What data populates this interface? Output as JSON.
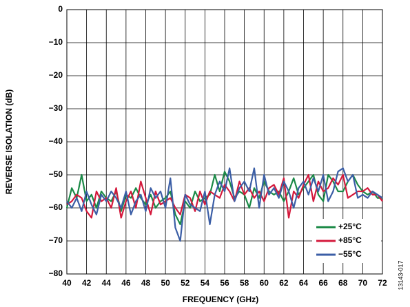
{
  "chart_data": {
    "type": "line",
    "xlabel": "FREQUENCY (GHz)",
    "ylabel": "REVERSE ISOLATION (dB)",
    "figure_id": "13143-017",
    "x": [
      40,
      40.5,
      41,
      41.5,
      42,
      42.5,
      43,
      43.5,
      44,
      44.5,
      45,
      45.5,
      46,
      46.5,
      47,
      47.5,
      48,
      48.5,
      49,
      49.5,
      50,
      50.5,
      51,
      51.5,
      52,
      52.5,
      53,
      53.5,
      54,
      54.5,
      55,
      55.5,
      56,
      56.5,
      57,
      57.5,
      58,
      58.5,
      59,
      59.5,
      60,
      60.5,
      61,
      61.5,
      62,
      62.5,
      63,
      63.5,
      64,
      64.5,
      65,
      65.5,
      66,
      66.5,
      67,
      67.5,
      68,
      68.5,
      69,
      69.5,
      70,
      70.5,
      71,
      71.5,
      72
    ],
    "series": [
      {
        "name": "+25°C",
        "color": "#1b8a47",
        "values": [
          -60,
          -54,
          -57,
          -50,
          -58,
          -56,
          -60,
          -55,
          -57,
          -58,
          -55,
          -61,
          -56,
          -57,
          -54,
          -57,
          -59,
          -56,
          -60,
          -58,
          -57,
          -55,
          -62,
          -65,
          -58,
          -60,
          -55,
          -58,
          -57,
          -56,
          -50,
          -55,
          -49,
          -52,
          -57,
          -55,
          -56,
          -60,
          -54,
          -57,
          -52,
          -55,
          -56,
          -55,
          -58,
          -55,
          -51,
          -56,
          -54,
          -52,
          -50,
          -56,
          -58,
          -50,
          -52,
          -55,
          -55,
          -52,
          -50,
          -53,
          -55,
          -56,
          -55,
          -57,
          -57
        ]
      },
      {
        "name": "+85°C",
        "color": "#d4193c",
        "values": [
          -59,
          -58,
          -56,
          -57,
          -61,
          -63,
          -55,
          -58,
          -57,
          -60,
          -54,
          -63,
          -58,
          -55,
          -60,
          -52,
          -57,
          -62,
          -55,
          -59,
          -58,
          -57,
          -60,
          -62,
          -56,
          -57,
          -61,
          -55,
          -59,
          -55,
          -56,
          -57,
          -53,
          -55,
          -58,
          -52,
          -56,
          -54,
          -57,
          -55,
          -58,
          -54,
          -53,
          -56,
          -51,
          -63,
          -55,
          -57,
          -53,
          -50,
          -58,
          -52,
          -55,
          -54,
          -51,
          -53,
          -50,
          -57,
          -56,
          -55,
          -55,
          -54,
          -56,
          -56,
          -58
        ]
      },
      {
        "name": "−55°C",
        "color": "#3b5ea6",
        "values": [
          -58,
          -60,
          -57,
          -61,
          -55,
          -59,
          -62,
          -56,
          -58,
          -55,
          -57,
          -60,
          -55,
          -62,
          -58,
          -56,
          -61,
          -54,
          -57,
          -55,
          -60,
          -51,
          -66,
          -70,
          -56,
          -59,
          -60,
          -61,
          -55,
          -65,
          -56,
          -52,
          -55,
          -48,
          -58,
          -54,
          -52,
          -55,
          -48,
          -60,
          -50,
          -56,
          -54,
          -57,
          -52,
          -55,
          -60,
          -54,
          -52,
          -56,
          -51,
          -55,
          -50,
          -58,
          -55,
          -49,
          -48,
          -52,
          -50,
          -57,
          -56,
          -57,
          -55,
          -56,
          -57
        ]
      }
    ],
    "xlim": [
      40,
      72
    ],
    "xticks": [
      40,
      42,
      44,
      46,
      48,
      50,
      52,
      54,
      56,
      58,
      60,
      62,
      64,
      66,
      68,
      70,
      72
    ],
    "ylim": [
      -80,
      0
    ],
    "yticks": [
      0,
      {
        "value": -10,
        "label": "−10"
      },
      {
        "value": -20,
        "label": "−20"
      },
      {
        "value": -30,
        "label": "−30"
      },
      {
        "value": -40,
        "label": "−40"
      },
      {
        "value": -50,
        "label": "−50"
      },
      {
        "value": -60,
        "label": "−60"
      },
      {
        "value": -70,
        "label": "−70"
      },
      {
        "value": -80,
        "label": "−80"
      }
    ],
    "grid": true,
    "legend": "lower-right"
  }
}
